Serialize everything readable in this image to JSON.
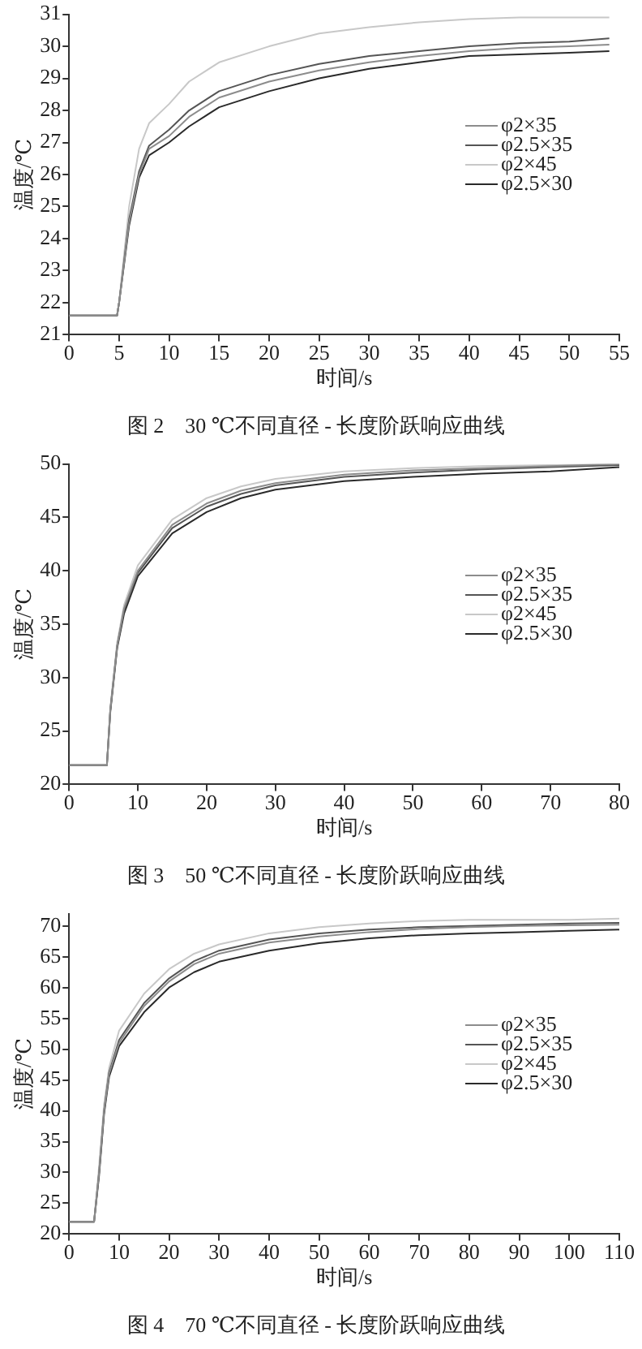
{
  "chart_data": [
    {
      "type": "line",
      "title": "图 2　30 ℃不同直径 - 长度阶跃响应曲线",
      "xlabel": "时间/s",
      "ylabel": "温度/℃",
      "xlim": [
        0,
        55
      ],
      "xticks": [
        0,
        5,
        10,
        15,
        20,
        25,
        30,
        35,
        40,
        45,
        50,
        55
      ],
      "ylim": [
        21,
        31
      ],
      "yticks": [
        21,
        22,
        23,
        24,
        25,
        26,
        27,
        28,
        29,
        30,
        31
      ],
      "grid": false,
      "legend": "right",
      "marker": "none",
      "line_style": "solid",
      "x": [
        0,
        4.8,
        5,
        6,
        7,
        8,
        10,
        12,
        15,
        20,
        25,
        30,
        35,
        40,
        45,
        50,
        54
      ],
      "series": [
        {
          "name": "φ2×35",
          "color": "#8c8c8c",
          "values": [
            21.6,
            21.6,
            22,
            24.5,
            26,
            26.8,
            27.2,
            27.8,
            28.4,
            28.9,
            29.25,
            29.5,
            29.7,
            29.85,
            29.95,
            30,
            30.05
          ]
        },
        {
          "name": "φ2.5×35",
          "color": "#555555",
          "values": [
            21.6,
            21.6,
            22,
            24.6,
            26.1,
            26.9,
            27.4,
            28,
            28.6,
            29.1,
            29.45,
            29.7,
            29.85,
            30,
            30.1,
            30.15,
            30.25
          ]
        },
        {
          "name": "φ2×45",
          "color": "#c8c8c8",
          "values": [
            21.6,
            21.6,
            22,
            25,
            26.8,
            27.6,
            28.2,
            28.9,
            29.5,
            30,
            30.4,
            30.6,
            30.75,
            30.85,
            30.9,
            30.9,
            30.9
          ]
        },
        {
          "name": "φ2.5×30",
          "color": "#2a2a2a",
          "values": [
            21.6,
            21.6,
            22,
            24.4,
            25.9,
            26.6,
            27,
            27.5,
            28.1,
            28.6,
            29,
            29.3,
            29.5,
            29.7,
            29.75,
            29.8,
            29.85
          ]
        }
      ]
    },
    {
      "type": "line",
      "title": "图 3　50 ℃不同直径 - 长度阶跃响应曲线",
      "xlabel": "时间/s",
      "ylabel": "温度/℃",
      "xlim": [
        0,
        80
      ],
      "xticks": [
        0,
        10,
        20,
        30,
        40,
        50,
        60,
        70,
        80
      ],
      "ylim": [
        20,
        50
      ],
      "yticks": [
        20,
        25,
        30,
        35,
        40,
        45,
        50
      ],
      "grid": false,
      "legend": "right",
      "marker": "none",
      "line_style": "solid",
      "x": [
        0,
        5.5,
        6,
        7,
        8,
        10,
        15,
        20,
        25,
        30,
        40,
        50,
        60,
        70,
        80
      ],
      "series": [
        {
          "name": "φ2×35",
          "color": "#8c8c8c",
          "values": [
            21.8,
            21.8,
            27,
            33,
            36.5,
            40,
            44.3,
            46.3,
            47.5,
            48.2,
            49,
            49.4,
            49.6,
            49.8,
            50
          ]
        },
        {
          "name": "φ2.5×35",
          "color": "#555555",
          "values": [
            21.8,
            21.8,
            27,
            33,
            36.3,
            39.8,
            44,
            46,
            47.2,
            48,
            48.8,
            49.2,
            49.5,
            49.7,
            49.9
          ]
        },
        {
          "name": "φ2×45",
          "color": "#c8c8c8",
          "values": [
            21.8,
            21.8,
            27.2,
            33.3,
            36.8,
            40.5,
            44.8,
            46.8,
            47.9,
            48.6,
            49.3,
            49.6,
            49.8,
            49.9,
            50
          ]
        },
        {
          "name": "φ2.5×30",
          "color": "#2a2a2a",
          "values": [
            21.8,
            21.8,
            26.8,
            32.8,
            36,
            39.5,
            43.5,
            45.5,
            46.8,
            47.6,
            48.4,
            48.8,
            49.1,
            49.3,
            49.7
          ]
        }
      ]
    },
    {
      "type": "line",
      "title": "图 4　70 ℃不同直径 - 长度阶跃响应曲线",
      "xlabel": "时间/s",
      "ylabel": "温度/℃",
      "xlim": [
        0,
        110
      ],
      "xticks": [
        0,
        10,
        20,
        30,
        40,
        50,
        60,
        70,
        80,
        90,
        100,
        110
      ],
      "ylim": [
        20,
        72
      ],
      "yticks": [
        20,
        25,
        30,
        35,
        40,
        45,
        50,
        55,
        60,
        65,
        70
      ],
      "grid": false,
      "legend": "right",
      "marker": "none",
      "line_style": "solid",
      "x": [
        0,
        5,
        6,
        7,
        8,
        10,
        15,
        20,
        25,
        30,
        40,
        50,
        60,
        70,
        80,
        90,
        100,
        110
      ],
      "series": [
        {
          "name": "φ2×35",
          "color": "#8c8c8c",
          "values": [
            22,
            22,
            30,
            40,
            46,
            51,
            57,
            61,
            63.8,
            65.5,
            67.3,
            68.3,
            69,
            69.5,
            69.8,
            70,
            70.1,
            70.2
          ]
        },
        {
          "name": "φ2.5×35",
          "color": "#555555",
          "values": [
            22,
            22,
            30,
            40,
            46.2,
            51.5,
            57.5,
            61.5,
            64.3,
            66,
            67.8,
            68.8,
            69.4,
            69.8,
            70,
            70.2,
            70.4,
            70.5
          ]
        },
        {
          "name": "φ2×45",
          "color": "#c8c8c8",
          "values": [
            22,
            22,
            31,
            41,
            47,
            53,
            59,
            63,
            65.5,
            67,
            68.8,
            69.8,
            70.4,
            70.8,
            71,
            71,
            71,
            71.2
          ]
        },
        {
          "name": "φ2.5×30",
          "color": "#2a2a2a",
          "values": [
            22,
            22,
            29.5,
            39.5,
            45.5,
            50.5,
            56,
            60,
            62.5,
            64.2,
            66,
            67.2,
            68,
            68.5,
            68.8,
            69,
            69.2,
            69.4
          ]
        }
      ]
    }
  ]
}
